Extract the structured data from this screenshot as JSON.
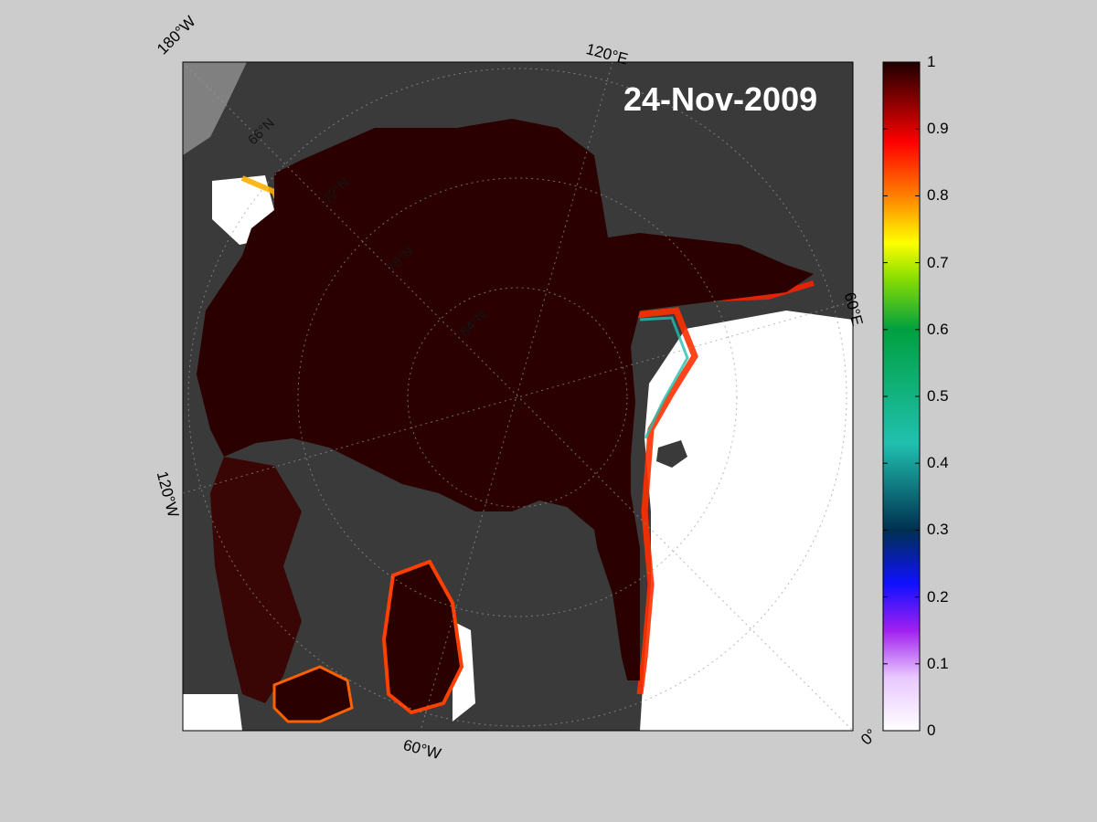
{
  "map": {
    "date_label": "24-Nov-2009",
    "longitude_labels": [
      "180°W",
      "120°E",
      "60°E",
      "0°",
      "60°W",
      "120°W"
    ],
    "latitude_labels": [
      "66°N",
      "72°N",
      "78°N",
      "84°N"
    ],
    "colors": {
      "background": "#cccccc",
      "land": "#3a3a3a",
      "land_shadow": "#808080",
      "ice_pack": "#2a0000",
      "open_water": "#ffffff"
    }
  },
  "colorbar": {
    "ticks": [
      "1",
      "0.9",
      "0.8",
      "0.7",
      "0.6",
      "0.5",
      "0.4",
      "0.3",
      "0.2",
      "0.1",
      "0"
    ],
    "min": 0,
    "max": 1,
    "colormap": [
      "#ffffff",
      "#e8c8ff",
      "#a020f0",
      "#1010ff",
      "#003050",
      "#20c0b0",
      "#00a040",
      "#90e000",
      "#ffff00",
      "#ff8000",
      "#ff0000",
      "#8b0000",
      "#200000"
    ]
  }
}
